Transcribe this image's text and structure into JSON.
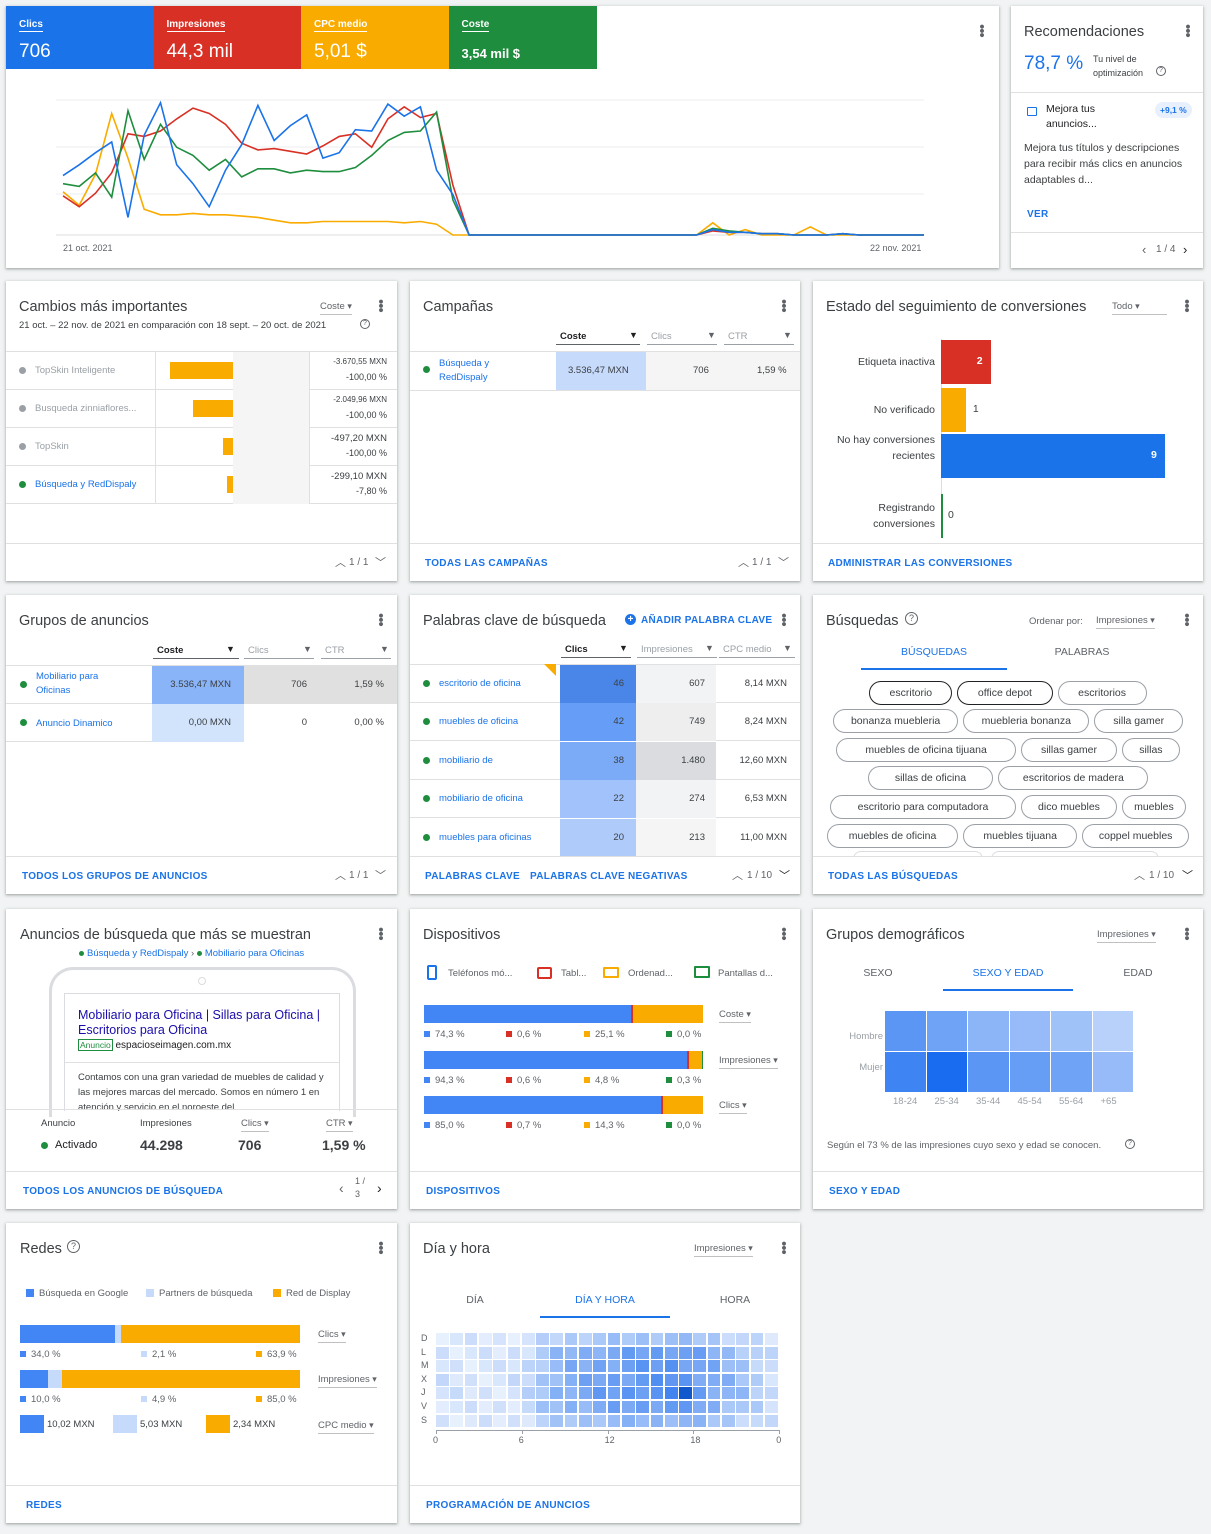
{
  "metrics": [
    {
      "label": "Clics",
      "value": "706",
      "color": "#1a73e8"
    },
    {
      "label": "Impresiones",
      "value": "44,3 mil",
      "color": "#d93025"
    },
    {
      "label": "CPC medio",
      "value": "5,01 $",
      "color": "#f9ab00"
    },
    {
      "label": "Coste",
      "value": "3,54 mil $",
      "color": "#1e8e3e"
    }
  ],
  "overview_chart": {
    "date_start": "21 oct. 2021",
    "date_end": "22 nov. 2021",
    "series": {
      "blue": [
        0.44,
        0.52,
        0.61,
        0.69,
        0.13,
        0.74,
        0.98,
        0.52,
        0.38,
        0.21,
        0.48,
        0.67,
        0.96,
        0.7,
        0.81,
        0.89,
        0.57,
        0.61,
        0.78,
        0.77,
        0.97,
        0.88,
        0.95,
        0.48,
        0.3,
        0.0,
        0,
        0,
        0,
        0,
        0,
        0,
        0,
        0,
        0,
        0,
        0,
        0,
        0,
        0,
        0.04,
        0.02,
        0.02,
        0.01,
        0.01,
        0.0,
        0.0,
        0.0,
        0.01,
        0.0,
        0.0,
        0.0,
        0.0,
        0.0
      ],
      "red": [
        0.29,
        0.21,
        0.31,
        0.46,
        0.75,
        0.73,
        0.77,
        0.86,
        0.94,
        0.9,
        0.82,
        0.68,
        0.63,
        0.64,
        0.62,
        0.6,
        0.66,
        0.73,
        0.75,
        0.65,
        0.86,
        0.95,
        0.87,
        0.9,
        0.37,
        0.0,
        0,
        0,
        0,
        0,
        0,
        0,
        0,
        0,
        0,
        0,
        0,
        0,
        0,
        0,
        0.03,
        0.02,
        0.02,
        0.01,
        0.01,
        0.0,
        0.0,
        0.0,
        0.01,
        0.0,
        0.0,
        0.0,
        0.0,
        0.0
      ],
      "orange": [
        0.32,
        0.22,
        0.45,
        0.9,
        0.57,
        0.19,
        0.15,
        0.15,
        0.16,
        0.15,
        0.15,
        0.14,
        0.13,
        0.11,
        0.09,
        0.09,
        0.1,
        0.1,
        0.1,
        0.1,
        0.1,
        0.09,
        0.1,
        0.08,
        0.0,
        0,
        0,
        0,
        0,
        0,
        0,
        0,
        0,
        0,
        0,
        0,
        0,
        0,
        0,
        0,
        0.09,
        0.0,
        0.04,
        0.0,
        0.0,
        0.0,
        0.06,
        0.0,
        0.0,
        0.0,
        0.0,
        0.0,
        0.0,
        0.0
      ],
      "green": [
        0.38,
        0.36,
        0.46,
        0.28,
        0.92,
        0.56,
        0.82,
        0.65,
        0.59,
        0.48,
        0.56,
        0.43,
        0.49,
        0.49,
        0.46,
        0.48,
        0.47,
        0.47,
        0.5,
        0.59,
        0.7,
        0.76,
        0.77,
        0.91,
        0.26,
        0.0,
        0,
        0,
        0,
        0,
        0,
        0,
        0,
        0,
        0,
        0,
        0,
        0,
        0,
        0,
        0.05,
        0.03,
        0.02,
        0.01,
        0.01,
        0.0,
        0.0,
        0.0,
        0.01,
        0.0,
        0.0,
        0.0,
        0.0,
        0.0
      ]
    }
  },
  "recommendations": {
    "title": "Recomendaciones",
    "score": "78,7 %",
    "score_label": "Tu nivel de optimización",
    "item_title": "Mejora tus anuncios...",
    "item_badge": "+9,1 %",
    "item_desc": "Mejora tus títulos y descripciones para recibir más clics en anuncios adaptables d...",
    "cta": "VER",
    "page": "1 / 4"
  },
  "cambios": {
    "title": "Cambios más importantes",
    "dropdown": "Coste",
    "subtitle": "21 oct. – 22 nov. de 2021 en comparación con 18 sept. – 20 oct. de 2021",
    "rows": [
      {
        "name": "TopSkin Inteligente",
        "value": "-3.670,55 MXN",
        "pct": "-100,00 %",
        "bar": 1.0,
        "active": false
      },
      {
        "name": "Busqueda zinniaflores...",
        "value": "-2.049,96 MXN",
        "pct": "-100,00 %",
        "bar": 0.63,
        "active": false
      },
      {
        "name": "TopSkin",
        "value": "-497,20 MXN",
        "pct": "-100,00 %",
        "bar": 0.16,
        "active": false
      },
      {
        "name": "Búsqueda y RedDispaly",
        "value": "-299,10 MXN",
        "pct": "-7,80 %",
        "bar": 0.09,
        "active": true
      }
    ],
    "page": "1 / 1"
  },
  "campanas": {
    "title": "Campañas",
    "columns": [
      "Coste",
      "Clics",
      "CTR"
    ],
    "rows": [
      {
        "name": "Búsqueda y RedDispaly",
        "coste": "3.536,47 MXN",
        "clics": "706",
        "ctr": "1,59 %"
      }
    ],
    "link": "TODAS LAS CAMPAÑAS",
    "page": "1 / 1"
  },
  "conversiones": {
    "title": "Estado del seguimiento de conversiones",
    "dropdown": "Todo",
    "chart_data": {
      "type": "bar",
      "categories": [
        "Etiqueta inactiva",
        "No verificado",
        "No hay conversiones recientes",
        "Registrando conversiones"
      ],
      "values": [
        2,
        1,
        9,
        0
      ],
      "colors": [
        "#d93025",
        "#f9ab00",
        "#1a73e8",
        "#1e8e3e"
      ]
    },
    "link": "ADMINISTRAR LAS CONVERSIONES"
  },
  "grupos": {
    "title": "Grupos de anuncios",
    "columns": [
      "Coste",
      "Clics",
      "CTR"
    ],
    "rows": [
      {
        "name": "Mobiliario para Oficinas",
        "coste": "3.536,47 MXN",
        "clics": "706",
        "ctr": "1,59 %"
      },
      {
        "name": "Anuncio Dinamico",
        "coste": "0,00 MXN",
        "clics": "0",
        "ctr": "0,00 %"
      }
    ],
    "link": "TODOS LOS GRUPOS DE ANUNCIOS",
    "page": "1 / 1"
  },
  "palabras": {
    "title": "Palabras clave de búsqueda",
    "add": "AÑADIR PALABRA CLAVE",
    "columns": [
      "Clics",
      "Impresiones",
      "CPC medio"
    ],
    "rows": [
      {
        "name": "escritorio de oficina",
        "clics": "46",
        "imp": "607",
        "cpc": "8,14 MXN"
      },
      {
        "name": "muebles de oficina",
        "clics": "42",
        "imp": "749",
        "cpc": "8,24 MXN"
      },
      {
        "name": "mobiliario de",
        "clics": "38",
        "imp": "1.480",
        "cpc": "12,60 MXN"
      },
      {
        "name": "mobiliario de oficina",
        "clics": "22",
        "imp": "274",
        "cpc": "6,53 MXN"
      },
      {
        "name": "muebles para oficinas",
        "clics": "20",
        "imp": "213",
        "cpc": "11,00 MXN"
      }
    ],
    "link1": "PALABRAS CLAVE",
    "link2": "PALABRAS CLAVE NEGATIVAS",
    "page": "1 / 10"
  },
  "busquedas": {
    "title": "Búsquedas",
    "sort_label": "Ordenar por:",
    "dropdown": "Impresiones",
    "tab1": "BÚSQUEDAS",
    "tab2": "PALABRAS",
    "chips": [
      [
        "escritorio",
        "office depot",
        "escritorios"
      ],
      [
        "bonanza muebleria",
        "muebleria bonanza",
        "silla gamer"
      ],
      [
        "muebles de oficina tijuana",
        "sillas gamer",
        "sillas"
      ],
      [
        "sillas de oficina",
        "escritorios de madera"
      ],
      [
        "escritorio para computadora",
        "dico muebles",
        "muebles"
      ],
      [
        "muebles de oficina",
        "muebles tijuana",
        "coppel muebles"
      ]
    ],
    "link": "TODAS LAS BÚSQUEDAS",
    "page": "1 / 10"
  },
  "anuncios": {
    "title": "Anuncios de búsqueda que más se muestran",
    "crumb1": "Búsqueda y RedDispaly",
    "crumb2": "Mobiliario para Oficinas",
    "ad_headline": "Mobiliario para Oficina | Sillas para Oficina | Escritorios para Oficina",
    "ad_label": "Anuncio",
    "ad_url": "espacioseimagen.com.mx",
    "ad_desc": "Contamos con una gran variedad de muebles de calidad y las mejores marcas del mercado. Somos en número 1 en atención y servicio en el noroeste del",
    "stats_labels": [
      "Anuncio",
      "Impresiones",
      "Clics",
      "CTR"
    ],
    "status": "Activado",
    "impresiones": "44.298",
    "clics": "706",
    "ctr": "1,59 %",
    "link": "TODOS LOS ANUNCIOS DE BÚSQUEDA",
    "page_top": "1 /",
    "page_bottom": "3"
  },
  "dispositivos": {
    "title": "Dispositivos",
    "legend": [
      "Teléfonos mó...",
      "Tabl...",
      "Ordenad...",
      "Pantallas d..."
    ],
    "bars": [
      {
        "metric": "Coste",
        "values": [
          74.3,
          0.6,
          25.1,
          0.0
        ],
        "labels": [
          "74,3 %",
          "0,6 %",
          "25,1 %",
          "0,0 %"
        ]
      },
      {
        "metric": "Impresiones",
        "values": [
          94.3,
          0.6,
          4.8,
          0.3
        ],
        "labels": [
          "94,3 %",
          "0,6 %",
          "4,8 %",
          "0,3 %"
        ]
      },
      {
        "metric": "Clics",
        "values": [
          85.0,
          0.7,
          14.3,
          0.0
        ],
        "labels": [
          "85,0 %",
          "0,7 %",
          "14,3 %",
          "0,0 %"
        ]
      }
    ],
    "link": "DISPOSITIVOS"
  },
  "demograficos": {
    "title": "Grupos demográficos",
    "dropdown": "Impresiones",
    "tabs": [
      "SEXO",
      "SEXO Y EDAD",
      "EDAD"
    ],
    "rows": [
      "Hombre",
      "Mujer"
    ],
    "cols": [
      "18-24",
      "25-34",
      "35-44",
      "45-54",
      "55-64",
      "+65"
    ],
    "heat": [
      [
        0.6,
        0.5,
        0.35,
        0.3,
        0.25,
        0.12
      ],
      [
        0.75,
        0.95,
        0.6,
        0.55,
        0.5,
        0.3
      ]
    ],
    "note": "Según el 73 % de las impresiones cuyo sexo y edad se conocen.",
    "link": "SEXO Y EDAD"
  },
  "redes": {
    "title": "Redes",
    "legend": [
      "Búsqueda en Google",
      "Partners de búsqueda",
      "Red de Display"
    ],
    "bars": [
      {
        "metric": "Clics",
        "values": [
          34.0,
          2.1,
          63.9
        ],
        "labels": [
          "34,0 %",
          "2,1 %",
          "63,9 %"
        ]
      },
      {
        "metric": "Impresiones",
        "values": [
          10.0,
          4.9,
          85.0
        ],
        "labels": [
          "10,0 %",
          "4,9 %",
          "85,0 %"
        ]
      }
    ],
    "cpc": {
      "metric": "CPC medio",
      "labels": [
        "10,02 MXN",
        "5,03 MXN",
        "2,34 MXN"
      ]
    },
    "link": "REDES"
  },
  "diahora": {
    "title": "Día y hora",
    "dropdown": "Impresiones",
    "tabs": [
      "DÍA",
      "DÍA Y HORA",
      "HORA"
    ],
    "days": [
      "D",
      "L",
      "M",
      "X",
      "J",
      "V",
      "S"
    ],
    "hours": [
      "0",
      "6",
      "12",
      "18",
      "0"
    ],
    "link": "PROGRAMACIÓN DE ANUNCIOS"
  }
}
